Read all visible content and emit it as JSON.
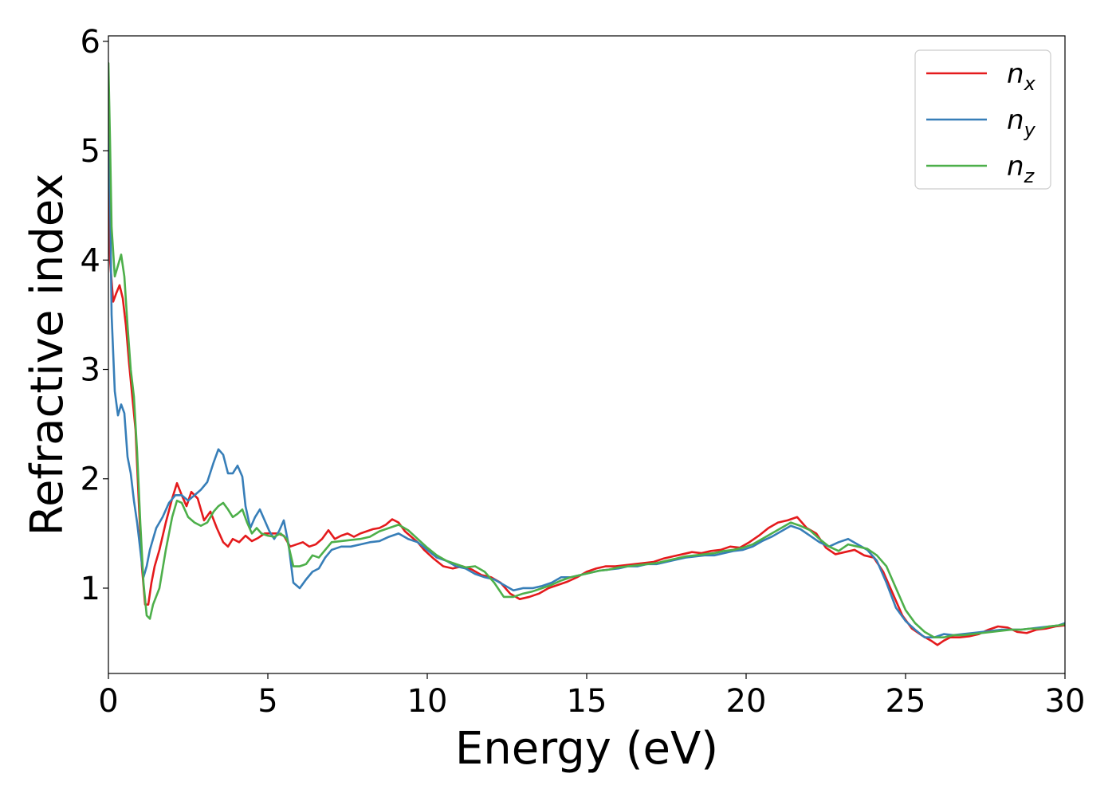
{
  "chart_data": {
    "type": "line",
    "xlabel": "Energy (eV)",
    "ylabel": "Refractive index",
    "xlim": [
      0,
      30
    ],
    "ylim": [
      0.22,
      6.05
    ],
    "xticks": [
      0,
      5,
      10,
      15,
      20,
      25,
      30
    ],
    "yticks": [
      1,
      2,
      3,
      4,
      5,
      6
    ],
    "grid": false,
    "legend_position": "top-right",
    "series": [
      {
        "name": "n",
        "subscript": "x",
        "color": "#e41a1c",
        "x": [
          0,
          0.05,
          0.15,
          0.25,
          0.35,
          0.45,
          0.55,
          0.65,
          0.75,
          0.85,
          0.95,
          1.05,
          1.15,
          1.25,
          1.35,
          1.45,
          1.6,
          1.8,
          2.0,
          2.15,
          2.3,
          2.45,
          2.6,
          2.8,
          3.0,
          3.2,
          3.4,
          3.6,
          3.75,
          3.9,
          4.1,
          4.3,
          4.5,
          4.7,
          4.9,
          5.1,
          5.3,
          5.5,
          5.7,
          5.9,
          6.1,
          6.3,
          6.5,
          6.7,
          6.9,
          7.1,
          7.3,
          7.5,
          7.7,
          7.9,
          8.1,
          8.3,
          8.5,
          8.7,
          8.9,
          9.1,
          9.3,
          9.5,
          9.7,
          9.9,
          10.2,
          10.5,
          10.8,
          11.1,
          11.4,
          11.7,
          12.0,
          12.3,
          12.6,
          12.9,
          13.2,
          13.5,
          13.8,
          14.1,
          14.4,
          14.7,
          15.0,
          15.3,
          15.6,
          15.9,
          16.2,
          16.5,
          16.8,
          17.1,
          17.4,
          17.7,
          18.0,
          18.3,
          18.6,
          18.9,
          19.2,
          19.5,
          19.8,
          20.1,
          20.4,
          20.7,
          21.0,
          21.3,
          21.6,
          21.9,
          22.2,
          22.5,
          22.8,
          23.1,
          23.4,
          23.7,
          24.0,
          24.3,
          24.6,
          24.9,
          25.2,
          25.5,
          25.8,
          26.0,
          26.2,
          26.4,
          26.7,
          27.0,
          27.3,
          27.6,
          27.9,
          28.2,
          28.5,
          28.8,
          29.1,
          29.4,
          29.7,
          30.0
        ],
        "y": [
          4.65,
          4.0,
          3.62,
          3.7,
          3.77,
          3.65,
          3.4,
          3.05,
          2.75,
          2.45,
          1.8,
          1.2,
          0.85,
          0.85,
          1.05,
          1.2,
          1.35,
          1.6,
          1.82,
          1.96,
          1.85,
          1.75,
          1.88,
          1.82,
          1.62,
          1.7,
          1.55,
          1.42,
          1.38,
          1.45,
          1.42,
          1.48,
          1.43,
          1.46,
          1.5,
          1.5,
          1.5,
          1.48,
          1.38,
          1.4,
          1.42,
          1.38,
          1.4,
          1.45,
          1.53,
          1.45,
          1.48,
          1.5,
          1.47,
          1.5,
          1.52,
          1.54,
          1.55,
          1.58,
          1.63,
          1.6,
          1.52,
          1.47,
          1.42,
          1.35,
          1.27,
          1.2,
          1.18,
          1.2,
          1.17,
          1.12,
          1.1,
          1.05,
          0.95,
          0.9,
          0.92,
          0.95,
          1.0,
          1.03,
          1.06,
          1.1,
          1.15,
          1.18,
          1.2,
          1.2,
          1.21,
          1.22,
          1.23,
          1.24,
          1.27,
          1.29,
          1.31,
          1.33,
          1.32,
          1.34,
          1.35,
          1.38,
          1.37,
          1.42,
          1.48,
          1.55,
          1.6,
          1.62,
          1.65,
          1.55,
          1.5,
          1.37,
          1.31,
          1.33,
          1.35,
          1.3,
          1.28,
          1.15,
          0.95,
          0.75,
          0.63,
          0.57,
          0.52,
          0.48,
          0.52,
          0.55,
          0.55,
          0.56,
          0.58,
          0.62,
          0.65,
          0.64,
          0.6,
          0.59,
          0.62,
          0.63,
          0.65,
          0.66
        ]
      },
      {
        "name": "n",
        "subscript": "y",
        "color": "#377eb8",
        "x": [
          0,
          0.05,
          0.1,
          0.2,
          0.3,
          0.4,
          0.5,
          0.6,
          0.7,
          0.8,
          0.9,
          1.0,
          1.1,
          1.2,
          1.3,
          1.5,
          1.7,
          1.9,
          2.1,
          2.3,
          2.5,
          2.7,
          2.9,
          3.1,
          3.3,
          3.45,
          3.6,
          3.75,
          3.9,
          4.05,
          4.2,
          4.3,
          4.45,
          4.6,
          4.75,
          4.9,
          5.05,
          5.2,
          5.35,
          5.5,
          5.65,
          5.8,
          6.0,
          6.2,
          6.4,
          6.6,
          6.8,
          7.0,
          7.3,
          7.6,
          7.9,
          8.2,
          8.5,
          8.8,
          9.1,
          9.4,
          9.7,
          10.0,
          10.3,
          10.6,
          10.9,
          11.2,
          11.5,
          11.8,
          12.1,
          12.4,
          12.7,
          13.0,
          13.3,
          13.6,
          13.9,
          14.2,
          14.5,
          14.8,
          15.1,
          15.4,
          15.7,
          16.0,
          16.3,
          16.6,
          16.9,
          17.2,
          17.5,
          17.8,
          18.1,
          18.4,
          18.7,
          19.0,
          19.3,
          19.6,
          19.9,
          20.2,
          20.5,
          20.8,
          21.1,
          21.4,
          21.7,
          22.0,
          22.3,
          22.6,
          22.9,
          23.2,
          23.5,
          23.8,
          24.1,
          24.4,
          24.7,
          25.0,
          25.3,
          25.6,
          25.9,
          26.2,
          26.5,
          26.8,
          27.1,
          27.4,
          27.7,
          28.0,
          28.3,
          28.6,
          28.9,
          29.2,
          29.5,
          29.8,
          30.0
        ],
        "y": [
          5.2,
          4.6,
          3.5,
          2.8,
          2.58,
          2.68,
          2.6,
          2.2,
          2.05,
          1.8,
          1.6,
          1.35,
          1.1,
          1.2,
          1.35,
          1.55,
          1.65,
          1.78,
          1.85,
          1.85,
          1.8,
          1.85,
          1.9,
          1.97,
          2.15,
          2.27,
          2.22,
          2.05,
          2.05,
          2.12,
          2.02,
          1.75,
          1.55,
          1.65,
          1.72,
          1.62,
          1.52,
          1.45,
          1.52,
          1.62,
          1.4,
          1.05,
          1.0,
          1.08,
          1.15,
          1.18,
          1.28,
          1.35,
          1.38,
          1.38,
          1.4,
          1.42,
          1.43,
          1.47,
          1.5,
          1.45,
          1.42,
          1.35,
          1.28,
          1.25,
          1.2,
          1.18,
          1.13,
          1.1,
          1.08,
          1.03,
          0.98,
          1.0,
          1.0,
          1.02,
          1.05,
          1.1,
          1.1,
          1.12,
          1.14,
          1.16,
          1.17,
          1.18,
          1.2,
          1.2,
          1.22,
          1.22,
          1.24,
          1.26,
          1.28,
          1.29,
          1.3,
          1.3,
          1.32,
          1.34,
          1.35,
          1.38,
          1.43,
          1.47,
          1.52,
          1.57,
          1.54,
          1.48,
          1.42,
          1.38,
          1.42,
          1.45,
          1.4,
          1.35,
          1.25,
          1.05,
          0.82,
          0.7,
          0.62,
          0.55,
          0.55,
          0.58,
          0.57,
          0.58,
          0.59,
          0.6,
          0.61,
          0.62,
          0.62,
          0.62,
          0.63,
          0.64,
          0.65,
          0.66,
          0.68
        ]
      },
      {
        "name": "n",
        "subscript": "z",
        "color": "#4daf4a",
        "x": [
          0,
          0.05,
          0.1,
          0.2,
          0.3,
          0.4,
          0.5,
          0.6,
          0.7,
          0.8,
          0.9,
          1.0,
          1.1,
          1.2,
          1.3,
          1.4,
          1.6,
          1.8,
          2.0,
          2.15,
          2.3,
          2.5,
          2.7,
          2.9,
          3.1,
          3.3,
          3.45,
          3.6,
          3.75,
          3.9,
          4.05,
          4.2,
          4.35,
          4.5,
          4.65,
          4.8,
          5.0,
          5.2,
          5.4,
          5.6,
          5.8,
          6.0,
          6.2,
          6.4,
          6.6,
          6.8,
          7.0,
          7.3,
          7.6,
          7.9,
          8.2,
          8.5,
          8.8,
          9.1,
          9.4,
          9.7,
          10.0,
          10.3,
          10.6,
          10.9,
          11.2,
          11.5,
          11.8,
          12.1,
          12.4,
          12.7,
          13.0,
          13.3,
          13.6,
          13.9,
          14.2,
          14.5,
          14.8,
          15.1,
          15.4,
          15.7,
          16.0,
          16.3,
          16.6,
          16.9,
          17.2,
          17.5,
          17.8,
          18.1,
          18.4,
          18.7,
          19.0,
          19.3,
          19.6,
          19.9,
          20.2,
          20.5,
          20.8,
          21.1,
          21.4,
          21.7,
          22.0,
          22.3,
          22.6,
          22.9,
          23.2,
          23.5,
          23.8,
          24.1,
          24.4,
          24.7,
          25.0,
          25.3,
          25.6,
          25.9,
          26.2,
          26.5,
          26.8,
          27.1,
          27.4,
          27.7,
          28.0,
          28.3,
          28.6,
          28.9,
          29.2,
          29.5,
          29.8,
          30.0
        ],
        "y": [
          5.8,
          5.1,
          4.3,
          3.85,
          3.95,
          4.05,
          3.85,
          3.4,
          3.0,
          2.75,
          2.25,
          1.6,
          1.05,
          0.75,
          0.72,
          0.85,
          1.0,
          1.35,
          1.65,
          1.8,
          1.78,
          1.65,
          1.6,
          1.57,
          1.6,
          1.7,
          1.75,
          1.78,
          1.72,
          1.65,
          1.68,
          1.72,
          1.6,
          1.5,
          1.55,
          1.5,
          1.48,
          1.47,
          1.5,
          1.45,
          1.2,
          1.2,
          1.22,
          1.3,
          1.28,
          1.35,
          1.42,
          1.43,
          1.44,
          1.45,
          1.47,
          1.52,
          1.55,
          1.58,
          1.53,
          1.45,
          1.37,
          1.3,
          1.25,
          1.22,
          1.19,
          1.2,
          1.15,
          1.05,
          0.92,
          0.92,
          0.95,
          0.97,
          1.0,
          1.03,
          1.07,
          1.1,
          1.12,
          1.14,
          1.16,
          1.17,
          1.19,
          1.2,
          1.21,
          1.22,
          1.23,
          1.25,
          1.27,
          1.29,
          1.3,
          1.31,
          1.32,
          1.34,
          1.35,
          1.37,
          1.4,
          1.45,
          1.5,
          1.55,
          1.6,
          1.57,
          1.53,
          1.45,
          1.38,
          1.34,
          1.4,
          1.38,
          1.36,
          1.3,
          1.2,
          1.0,
          0.8,
          0.68,
          0.6,
          0.55,
          0.55,
          0.57,
          0.57,
          0.58,
          0.59,
          0.6,
          0.61,
          0.62,
          0.62,
          0.63,
          0.63,
          0.65,
          0.66,
          0.67
        ]
      }
    ]
  }
}
